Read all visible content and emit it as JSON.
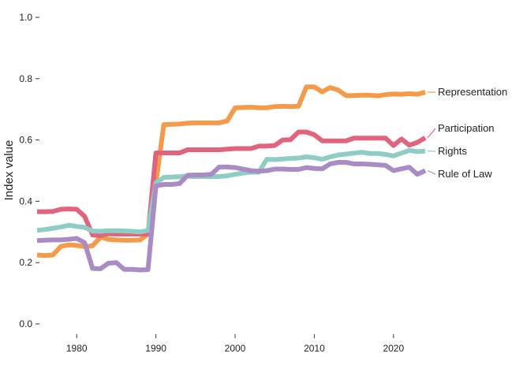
{
  "chart_data": {
    "type": "line",
    "ylabel": "Index value",
    "xlabel": "",
    "title": "",
    "xlim": [
      1974.5,
      2024.5
    ],
    "ylim": [
      0,
      1
    ],
    "yticks": [
      "0.0",
      "0.2",
      "0.4",
      "0.6",
      "0.8",
      "1.0"
    ],
    "xticks": [
      "1980",
      "1990",
      "2000",
      "2010",
      "2020"
    ],
    "grid": false,
    "legend": "direct-labels-right",
    "x": [
      1975,
      1976,
      1977,
      1978,
      1979,
      1980,
      1981,
      1982,
      1983,
      1984,
      1985,
      1986,
      1987,
      1988,
      1989,
      1990,
      1991,
      1992,
      1993,
      1994,
      1995,
      1996,
      1997,
      1998,
      1999,
      2000,
      2001,
      2002,
      2003,
      2004,
      2005,
      2006,
      2007,
      2008,
      2009,
      2010,
      2011,
      2012,
      2013,
      2014,
      2015,
      2016,
      2017,
      2018,
      2019,
      2020,
      2021,
      2022,
      2023,
      2024
    ],
    "series": [
      {
        "name": "Representation",
        "color": "#F59A4A",
        "values": [
          0.225,
          0.223,
          0.225,
          0.253,
          0.258,
          0.256,
          0.252,
          0.255,
          0.283,
          0.276,
          0.274,
          0.273,
          0.273,
          0.274,
          0.293,
          0.46,
          0.65,
          0.651,
          0.652,
          0.655,
          0.656,
          0.656,
          0.656,
          0.656,
          0.662,
          0.705,
          0.706,
          0.707,
          0.705,
          0.705,
          0.709,
          0.71,
          0.709,
          0.71,
          0.773,
          0.773,
          0.757,
          0.771,
          0.763,
          0.745,
          0.745,
          0.746,
          0.746,
          0.744,
          0.748,
          0.75,
          0.749,
          0.751,
          0.749,
          0.756
        ]
      },
      {
        "name": "Participation",
        "color": "#E0647E",
        "values": [
          0.366,
          0.366,
          0.367,
          0.374,
          0.375,
          0.374,
          0.351,
          0.29,
          0.288,
          0.294,
          0.293,
          0.293,
          0.293,
          0.293,
          0.293,
          0.558,
          0.558,
          0.558,
          0.558,
          0.568,
          0.568,
          0.568,
          0.568,
          0.568,
          0.57,
          0.572,
          0.572,
          0.572,
          0.58,
          0.58,
          0.582,
          0.6,
          0.601,
          0.626,
          0.626,
          0.617,
          0.597,
          0.597,
          0.597,
          0.597,
          0.606,
          0.606,
          0.606,
          0.606,
          0.606,
          0.582,
          0.603,
          0.583,
          0.592,
          0.607
        ]
      },
      {
        "name": "Rights",
        "color": "#8ECDC4",
        "values": [
          0.305,
          0.308,
          0.312,
          0.316,
          0.322,
          0.318,
          0.315,
          0.303,
          0.302,
          0.304,
          0.304,
          0.303,
          0.302,
          0.3,
          0.305,
          0.46,
          0.478,
          0.479,
          0.48,
          0.482,
          0.48,
          0.481,
          0.48,
          0.481,
          0.483,
          0.488,
          0.492,
          0.495,
          0.495,
          0.537,
          0.536,
          0.538,
          0.54,
          0.541,
          0.545,
          0.542,
          0.537,
          0.545,
          0.551,
          0.554,
          0.557,
          0.56,
          0.556,
          0.556,
          0.553,
          0.548,
          0.557,
          0.566,
          0.562,
          0.564
        ]
      },
      {
        "name": "Rule of Law",
        "color": "#A98BC6",
        "values": [
          0.272,
          0.273,
          0.274,
          0.274,
          0.276,
          0.279,
          0.265,
          0.181,
          0.18,
          0.198,
          0.2,
          0.178,
          0.178,
          0.176,
          0.177,
          0.45,
          0.455,
          0.455,
          0.458,
          0.485,
          0.486,
          0.486,
          0.488,
          0.512,
          0.512,
          0.51,
          0.505,
          0.5,
          0.498,
          0.5,
          0.505,
          0.505,
          0.504,
          0.504,
          0.51,
          0.507,
          0.506,
          0.522,
          0.527,
          0.527,
          0.522,
          0.522,
          0.521,
          0.519,
          0.517,
          0.5,
          0.506,
          0.511,
          0.488,
          0.5
        ]
      }
    ]
  }
}
